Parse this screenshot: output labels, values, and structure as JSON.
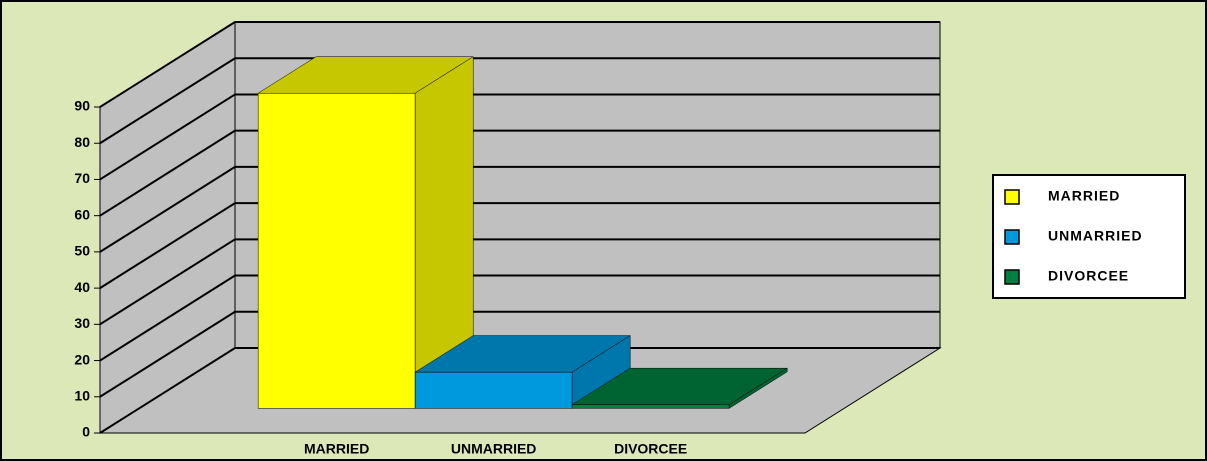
{
  "chart_data": {
    "type": "bar3d",
    "categories": [
      "MARRIED",
      "UNMARRIED",
      "DIVORCEE"
    ],
    "values": [
      87,
      10,
      1
    ],
    "colors": [
      "#ffff00",
      "#0099dd",
      "#008040"
    ],
    "ylim": [
      0,
      90
    ],
    "yticks": [
      0,
      10,
      20,
      30,
      40,
      50,
      60,
      70,
      80,
      90
    ],
    "grid": true,
    "legend": "right"
  }
}
